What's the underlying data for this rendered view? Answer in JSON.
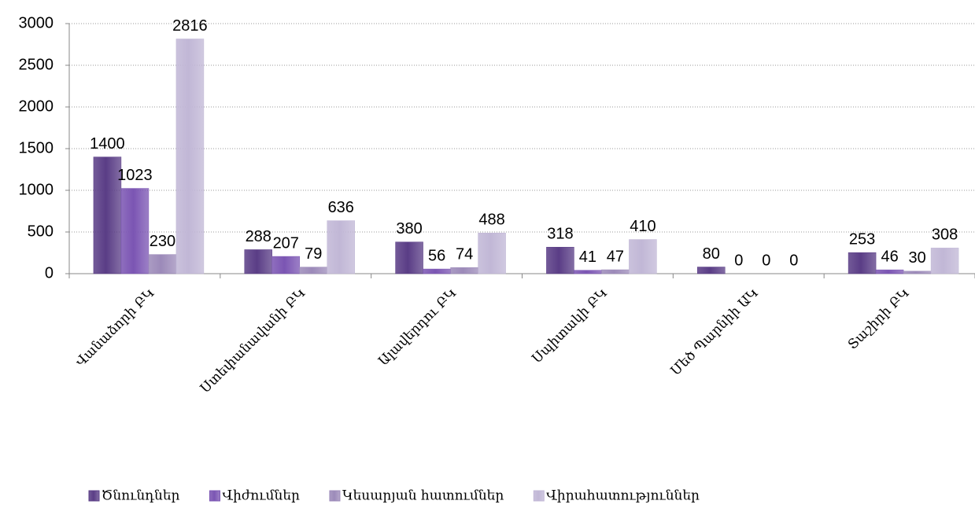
{
  "chart_data": {
    "type": "bar",
    "categories": [
      "Վանաձորի ԲԿ",
      "Ստեփանավանի ԲԿ",
      "Ալավերդու ԲԿ",
      "Սպիտակի ԲԿ",
      "Մեծ Պարնիի ԱԿ",
      "Տաշիրի ԲԿ"
    ],
    "series": [
      {
        "name": "Ծնունդներ",
        "color": "#5a3d86",
        "values": [
          1400,
          288,
          380,
          318,
          80,
          253
        ]
      },
      {
        "name": "Վիժումներ",
        "color": "#7b55b3",
        "values": [
          1023,
          207,
          56,
          41,
          0,
          46
        ]
      },
      {
        "name": "Կեսարյան հատումներ",
        "color": "#9c8ab9",
        "values": [
          230,
          79,
          74,
          47,
          0,
          30
        ]
      },
      {
        "name": "Վիրահատություններ",
        "color": "#c1b7d6",
        "values": [
          2816,
          636,
          488,
          410,
          0,
          308
        ]
      }
    ],
    "ylim": [
      0,
      3000
    ],
    "yticks": [
      0,
      500,
      1000,
      1500,
      2000,
      2500,
      3000
    ],
    "grid": true,
    "legend": "bottom"
  }
}
